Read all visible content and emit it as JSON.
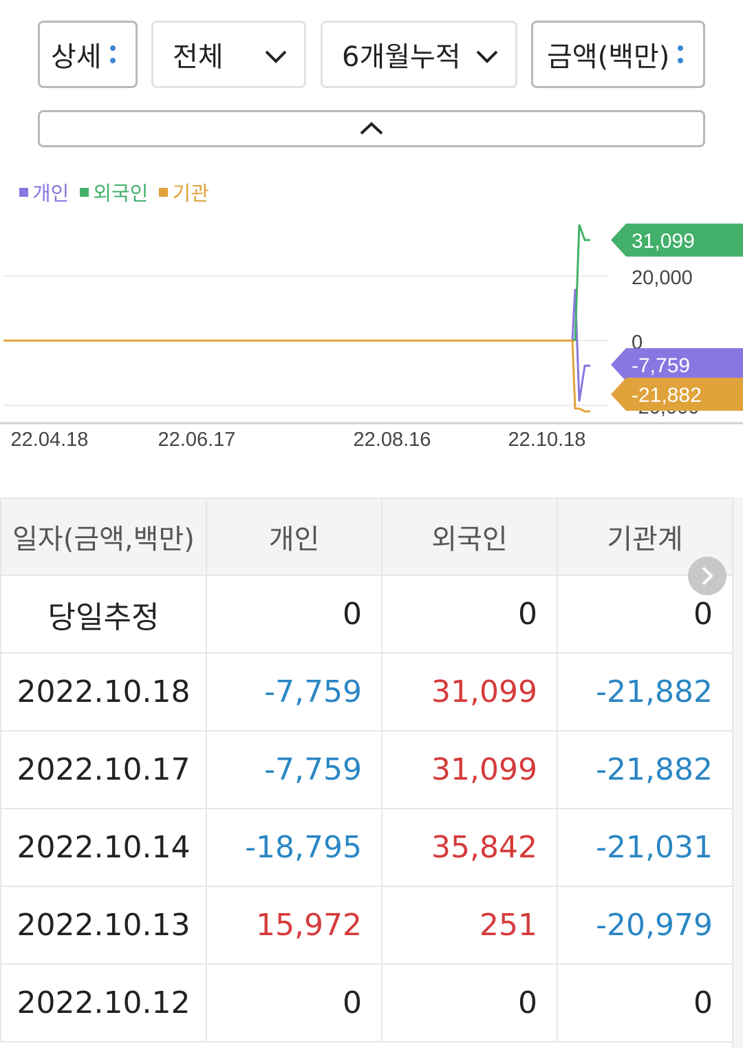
{
  "filters": {
    "view": "상세",
    "scope": "전체",
    "period": "6개월누적",
    "unit": "금액(백만)"
  },
  "legend": [
    {
      "name": "개인",
      "color": "#8a76e0"
    },
    {
      "name": "외국인",
      "color": "#43b06a"
    },
    {
      "name": "기관",
      "color": "#e0a33c"
    }
  ],
  "chart_data": {
    "type": "line",
    "x_ticks": [
      "22.04.18",
      "22.06.17",
      "22.08.16",
      "22.10.18"
    ],
    "y_ticks": [
      20000,
      0,
      -20000
    ],
    "ylim": [
      -23000,
      32000
    ],
    "series": [
      {
        "name": "개인",
        "color": "#8a76e0",
        "x": [
          "22.10.12",
          "22.10.13",
          "22.10.14",
          "22.10.17",
          "22.10.18"
        ],
        "values": [
          0,
          15972,
          -18795,
          -7759,
          -7759
        ]
      },
      {
        "name": "외국인",
        "color": "#43b06a",
        "x": [
          "22.10.12",
          "22.10.13",
          "22.10.14",
          "22.10.17",
          "22.10.18"
        ],
        "values": [
          0,
          251,
          35842,
          31099,
          31099
        ]
      },
      {
        "name": "기관",
        "color": "#e0a33c",
        "x": [
          "22.10.12",
          "22.10.13",
          "22.10.14",
          "22.10.17",
          "22.10.18"
        ],
        "values": [
          0,
          -20979,
          -21031,
          -21882,
          -21882
        ]
      }
    ],
    "end_labels": [
      {
        "text": "31,099",
        "color": "#43b06a",
        "value": 31099
      },
      {
        "text": "-7,759",
        "color": "#8a76e0",
        "value": -7759
      },
      {
        "text": "-21,882",
        "color": "#e0a33c",
        "value": -21882
      }
    ]
  },
  "table": {
    "headers": [
      "일자(금액,백만)",
      "개인",
      "외국인",
      "기관계"
    ],
    "rows": [
      {
        "date": "당일추정",
        "individual": "0",
        "foreign": "0",
        "institution": "0"
      },
      {
        "date": "2022.10.18",
        "individual": "-7,759",
        "foreign": "31,099",
        "institution": "-21,882"
      },
      {
        "date": "2022.10.17",
        "individual": "-7,759",
        "foreign": "31,099",
        "institution": "-21,882"
      },
      {
        "date": "2022.10.14",
        "individual": "-18,795",
        "foreign": "35,842",
        "institution": "-21,031"
      },
      {
        "date": "2022.10.13",
        "individual": "15,972",
        "foreign": "251",
        "institution": "-20,979"
      },
      {
        "date": "2022.10.12",
        "individual": "0",
        "foreign": "0",
        "institution": "0"
      }
    ]
  },
  "colors": {
    "positive": "#d63a3a",
    "negative": "#2a86c4"
  }
}
